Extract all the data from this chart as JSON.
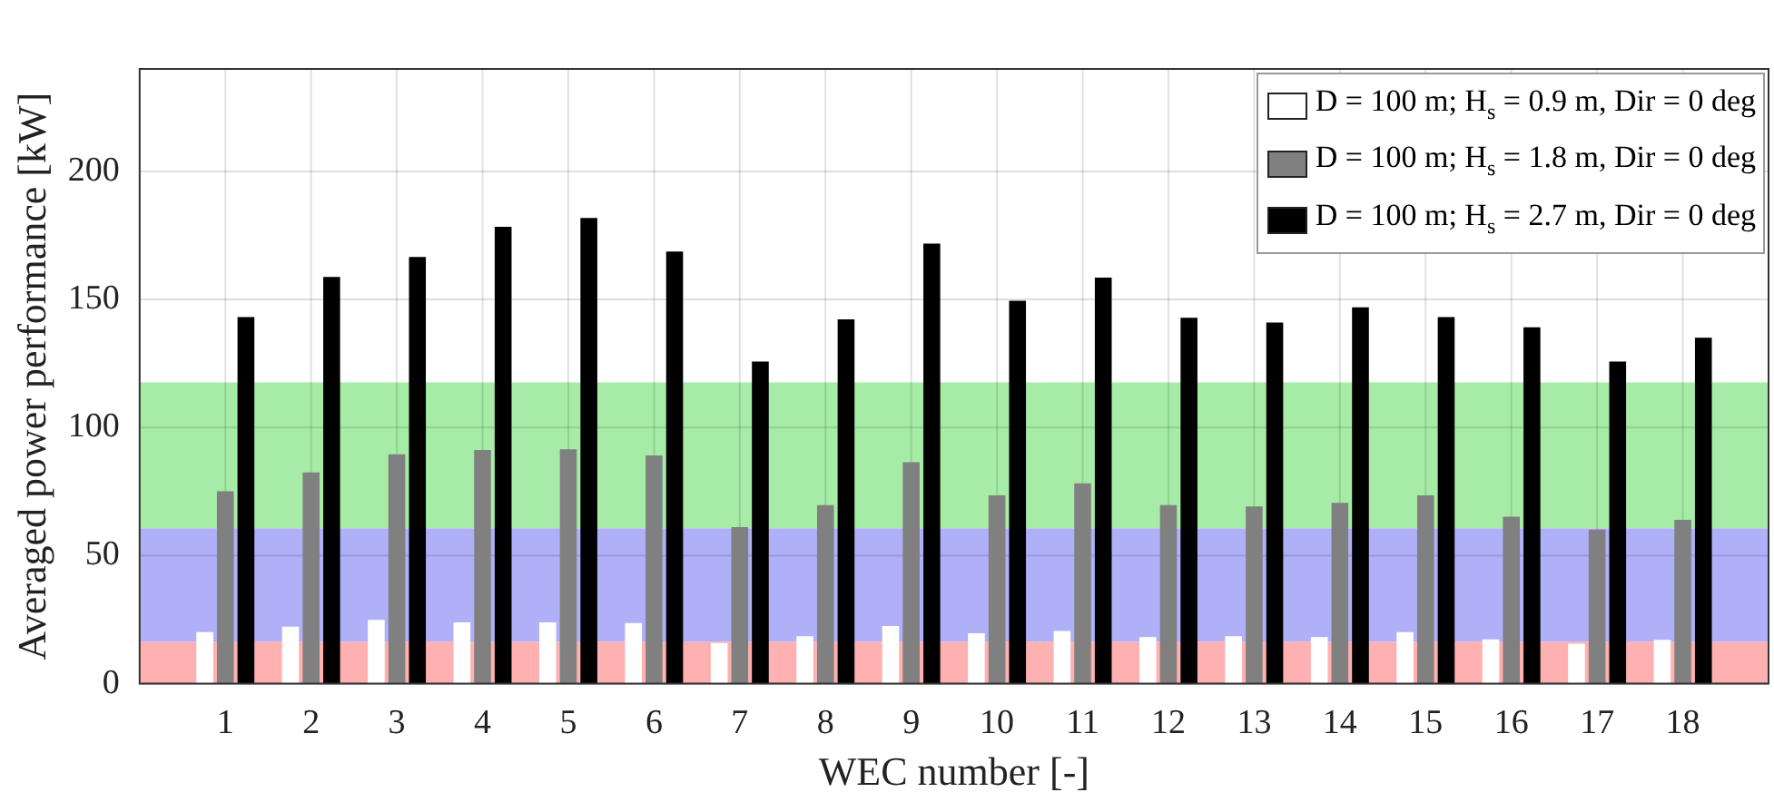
{
  "chart_data": {
    "type": "bar",
    "xlabel": "WEC number [-]",
    "ylabel": "Averaged power performance [kW]",
    "x": [
      1,
      2,
      3,
      4,
      5,
      6,
      7,
      8,
      9,
      10,
      11,
      12,
      13,
      14,
      15,
      16,
      17,
      18
    ],
    "series": [
      {
        "name": "D = 100 m; H$_{s}$ = 0.9 m, Dir = 0 deg",
        "color": "#ffffff",
        "values": [
          20.1,
          22.3,
          24.9,
          23.9,
          23.9,
          23.7,
          15.9,
          18.5,
          22.5,
          19.7,
          20.6,
          18.2,
          18.5,
          18.2,
          20.1,
          17.3,
          15.6,
          17.1
        ]
      },
      {
        "name": "D = 100 m; H$_{s}$ = 1.8 m, Dir = 0 deg",
        "color": "#808080",
        "values": [
          75.1,
          82.5,
          89.6,
          91.2,
          91.5,
          89.1,
          61.1,
          69.7,
          86.5,
          73.5,
          78.2,
          69.7,
          69.2,
          70.6,
          73.5,
          65.2,
          60.2,
          64.0
        ]
      },
      {
        "name": "D = 100 m; H$_{s}$ = 2.7 m, Dir = 0 deg",
        "color": "#000000",
        "values": [
          143.1,
          158.8,
          166.6,
          178.4,
          181.8,
          168.7,
          125.8,
          142.2,
          171.8,
          149.5,
          158.5,
          142.9,
          141.0,
          146.9,
          143.1,
          139.1,
          125.8,
          135.1
        ]
      }
    ],
    "xlim": [
      0,
      19
    ],
    "xticks": [
      1,
      2,
      3,
      4,
      5,
      6,
      7,
      8,
      9,
      10,
      11,
      12,
      13,
      14,
      15,
      16,
      17,
      18
    ],
    "ylim": [
      0,
      240
    ],
    "yticks": [
      0,
      50,
      100,
      150,
      200
    ],
    "bands": [
      {
        "axis": "y",
        "from": 0,
        "to": 16.4,
        "color": "#ffb0b0"
      },
      {
        "axis": "y",
        "from": 16.4,
        "to": 60.7,
        "color": "#b0b0f8"
      },
      {
        "axis": "y",
        "from": 60.7,
        "to": 117.6,
        "color": "#a6eca6"
      }
    ],
    "grid": true,
    "legend": "top right"
  }
}
